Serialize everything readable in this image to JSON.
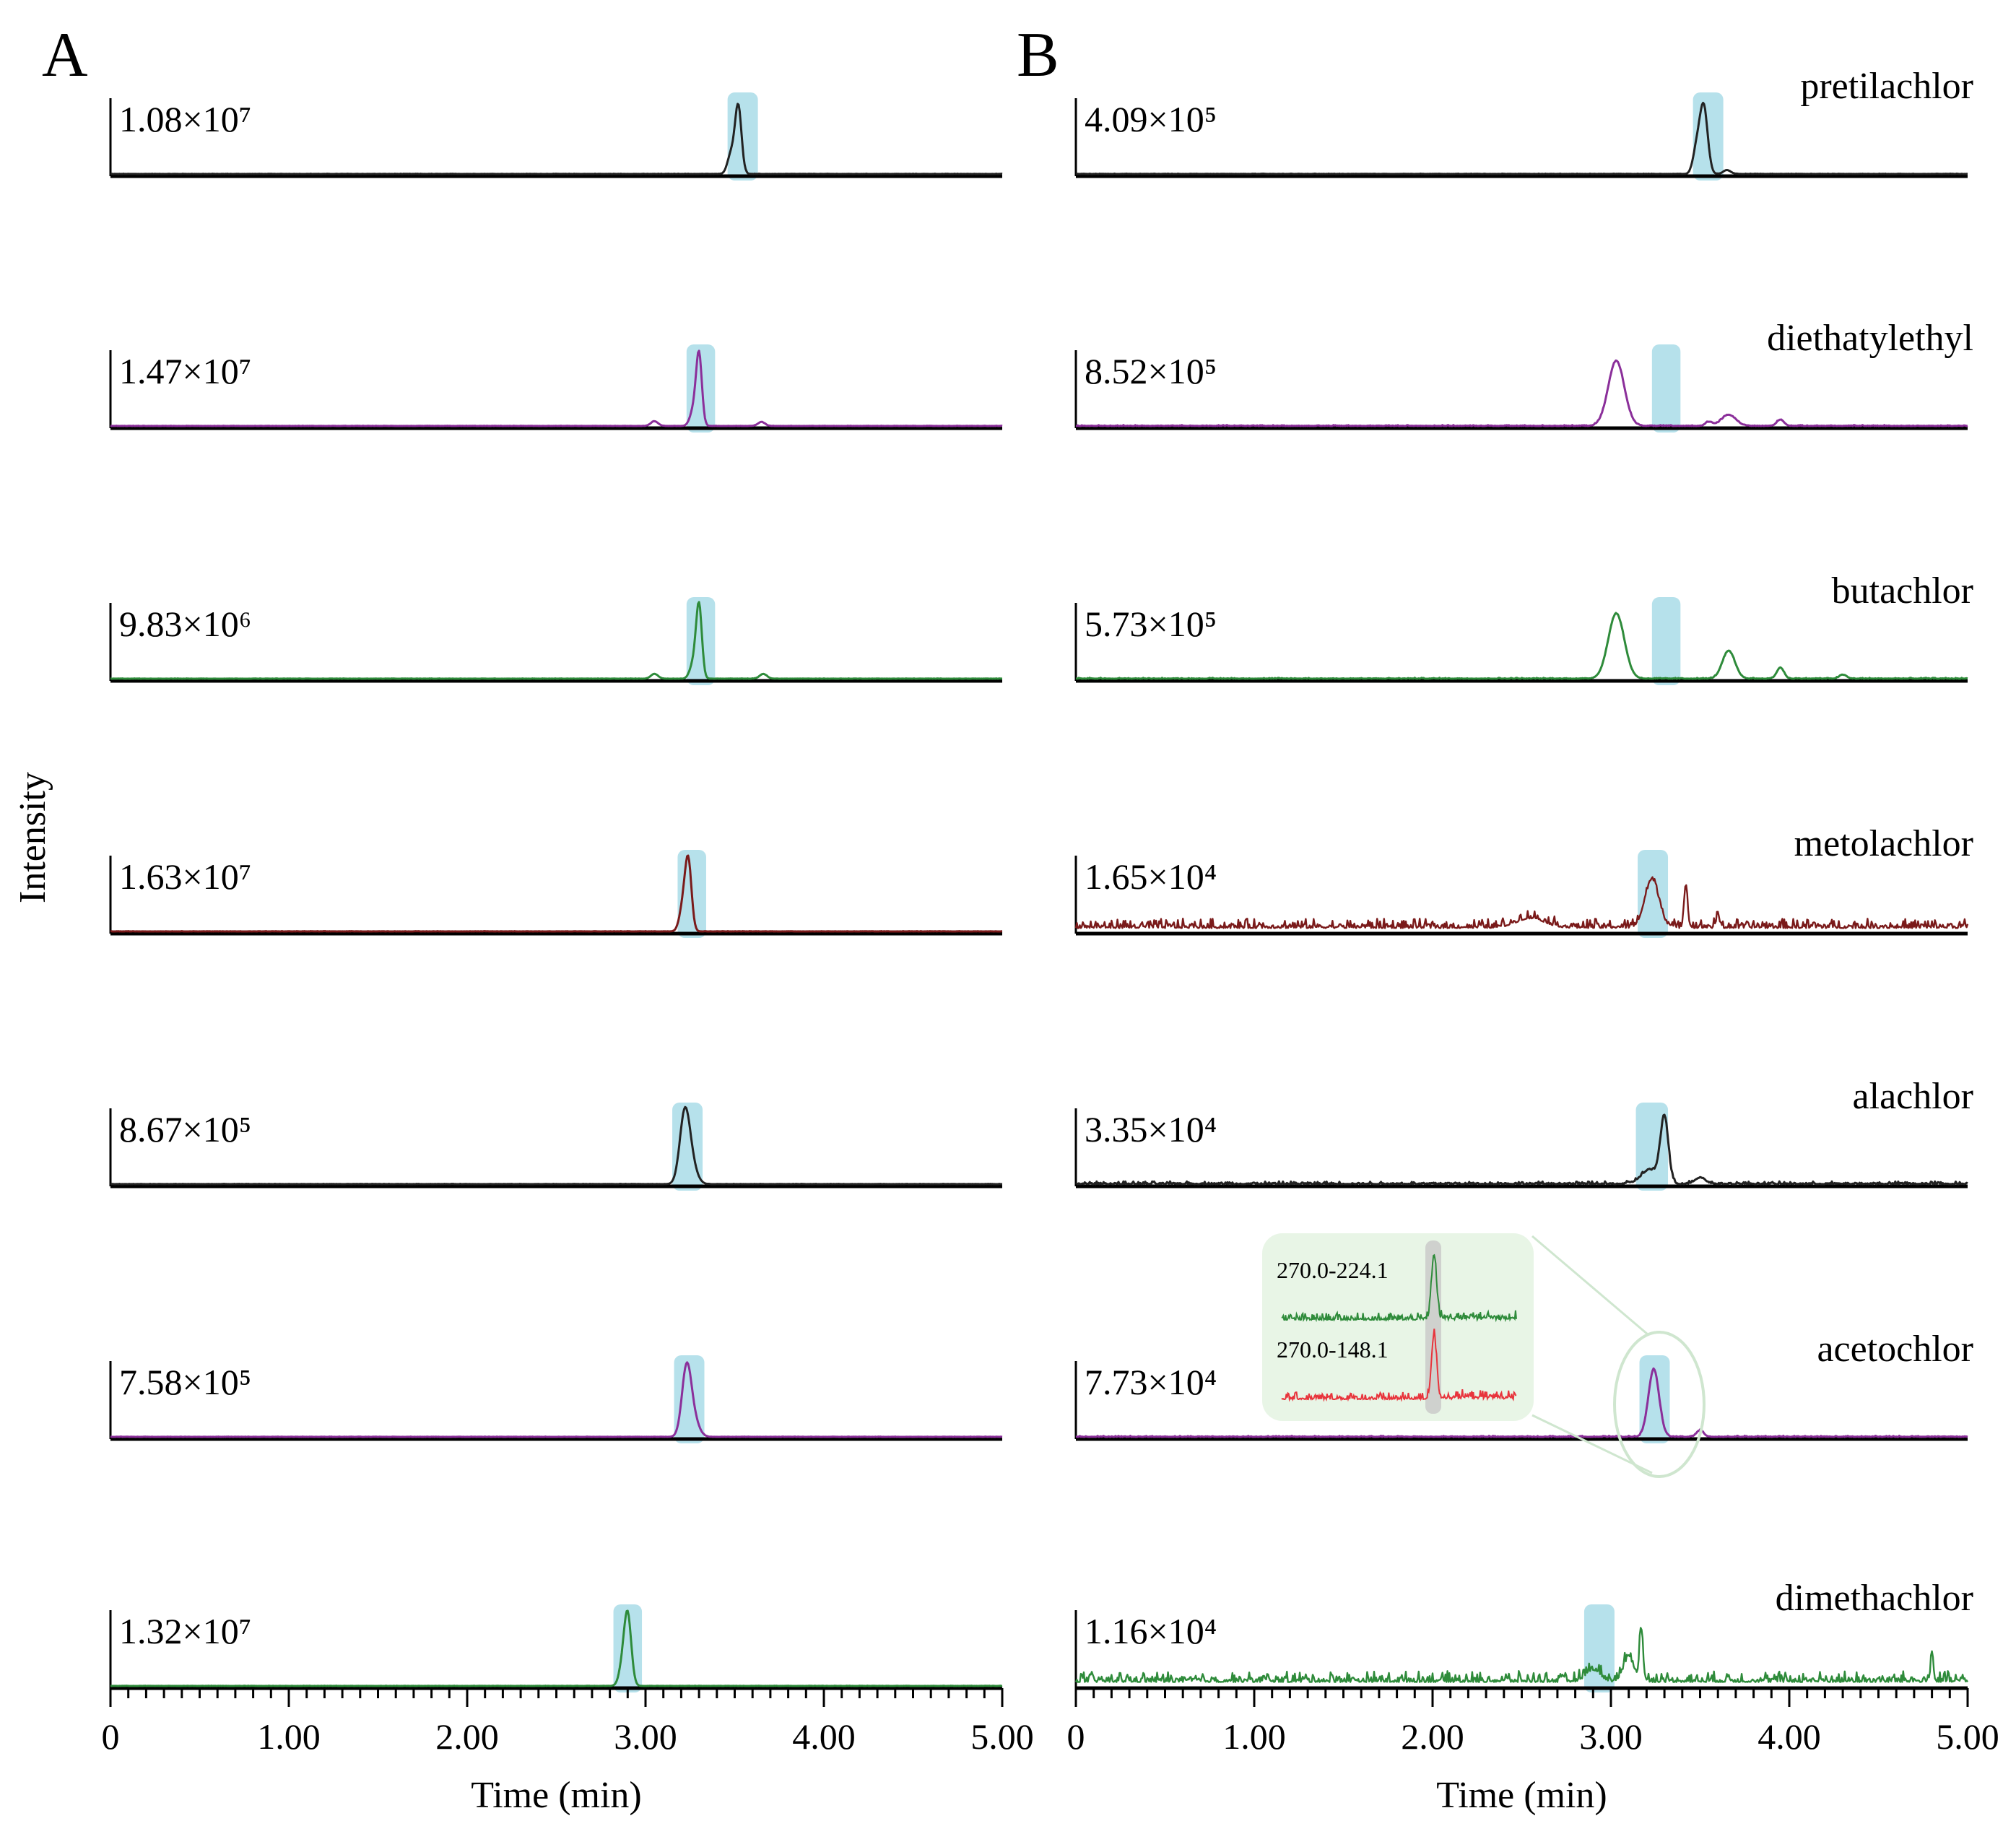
{
  "figure": {
    "panels": [
      "A",
      "B"
    ],
    "ylabel": "Intensity",
    "xlabel": "Time (min)",
    "xticks": [
      "0",
      "1.00",
      "2.00",
      "3.00",
      "4.00",
      "5.00"
    ]
  },
  "compounds": [
    "pretilachlor",
    "diethatylethyl",
    "butachlor",
    "metolachlor",
    "alachlor",
    "acetochlor",
    "dimethachlor"
  ],
  "inset": {
    "labels": [
      "270.0-224.1",
      "270.0-148.1"
    ],
    "colors": [
      "#2e8b3a",
      "#e8343c"
    ]
  },
  "highlight_color": "#a9dce8",
  "chart_data": [
    {
      "panel": "A",
      "type": "line",
      "title": "A",
      "xlabel": "Time (min)",
      "ylabel": "Intensity",
      "xlim": [
        0,
        5
      ],
      "grid": false,
      "series": [
        {
          "name": "pretilachlor",
          "scale": "1.08×10⁷",
          "color": "#222222",
          "noise": 0.004,
          "highlight": [
            3.46,
            3.63
          ],
          "peaks": [
            {
              "t": 3.52,
              "h": 0.85,
              "w": 0.018
            },
            {
              "t": 3.48,
              "h": 0.25,
              "w": 0.02
            }
          ]
        },
        {
          "name": "diethatylethyl",
          "scale": "1.47×10⁷",
          "color": "#8b2f9a",
          "noise": 0.004,
          "highlight": [
            3.23,
            3.39
          ],
          "peaks": [
            {
              "t": 3.3,
              "h": 0.88,
              "w": 0.016
            },
            {
              "t": 3.27,
              "h": 0.2,
              "w": 0.02
            },
            {
              "t": 3.05,
              "h": 0.06,
              "w": 0.02
            },
            {
              "t": 3.65,
              "h": 0.05,
              "w": 0.02
            }
          ]
        },
        {
          "name": "butachlor",
          "scale": "9.83×10⁶",
          "color": "#2e8b3a",
          "noise": 0.004,
          "highlight": [
            3.23,
            3.39
          ],
          "peaks": [
            {
              "t": 3.3,
              "h": 0.9,
              "w": 0.016
            },
            {
              "t": 3.27,
              "h": 0.2,
              "w": 0.02
            },
            {
              "t": 3.05,
              "h": 0.06,
              "w": 0.02
            },
            {
              "t": 3.66,
              "h": 0.06,
              "w": 0.02
            }
          ]
        },
        {
          "name": "metolachlor",
          "scale": "1.63×10⁷",
          "color": "#7a1a1a",
          "noise": 0.004,
          "highlight": [
            3.18,
            3.34
          ],
          "peaks": [
            {
              "t": 3.24,
              "h": 0.85,
              "w": 0.018
            },
            {
              "t": 3.21,
              "h": 0.3,
              "w": 0.02
            }
          ]
        },
        {
          "name": "alachlor",
          "scale": "8.67×10⁵",
          "color": "#222222",
          "noise": 0.004,
          "highlight": [
            3.15,
            3.32
          ],
          "peaks": [
            {
              "t": 3.22,
              "h": 0.88,
              "w": 0.028
            },
            {
              "t": 3.26,
              "h": 0.2,
              "w": 0.03
            }
          ]
        },
        {
          "name": "acetochlor",
          "scale": "7.58×10⁵",
          "color": "#8b2f9a",
          "noise": 0.004,
          "highlight": [
            3.16,
            3.33
          ],
          "peaks": [
            {
              "t": 3.23,
              "h": 0.85,
              "w": 0.026
            },
            {
              "t": 3.27,
              "h": 0.2,
              "w": 0.03
            }
          ]
        },
        {
          "name": "dimethachlor",
          "scale": "1.32×10⁷",
          "color": "#2e8b3a",
          "noise": 0.004,
          "highlight": [
            2.82,
            2.98
          ],
          "peaks": [
            {
              "t": 2.9,
              "h": 0.88,
              "w": 0.02
            },
            {
              "t": 2.87,
              "h": 0.2,
              "w": 0.02
            }
          ]
        }
      ]
    },
    {
      "panel": "B",
      "type": "line",
      "title": "B",
      "xlabel": "Time (min)",
      "ylabel": "Intensity",
      "xlim": [
        0,
        5
      ],
      "grid": false,
      "series": [
        {
          "name": "pretilachlor",
          "scale": "4.09×10⁵",
          "color": "#222222",
          "noise": 0.005,
          "highlight": [
            3.46,
            3.63
          ],
          "peaks": [
            {
              "t": 3.52,
              "h": 0.85,
              "w": 0.022
            },
            {
              "t": 3.48,
              "h": 0.3,
              "w": 0.02
            },
            {
              "t": 3.65,
              "h": 0.05,
              "w": 0.02
            }
          ]
        },
        {
          "name": "diethatylethyl",
          "scale": "8.52×10⁵",
          "color": "#8b2f9a",
          "noise": 0.012,
          "highlight": [
            3.23,
            3.39
          ],
          "peaks": [
            {
              "t": 3.03,
              "h": 0.82,
              "w": 0.045
            },
            {
              "t": 3.66,
              "h": 0.14,
              "w": 0.04
            },
            {
              "t": 3.95,
              "h": 0.08,
              "w": 0.02
            },
            {
              "t": 3.55,
              "h": 0.05,
              "w": 0.02
            }
          ]
        },
        {
          "name": "butachlor",
          "scale": "5.73×10⁵",
          "color": "#2e8b3a",
          "noise": 0.012,
          "highlight": [
            3.23,
            3.39
          ],
          "peaks": [
            {
              "t": 3.03,
              "h": 0.82,
              "w": 0.045
            },
            {
              "t": 3.66,
              "h": 0.35,
              "w": 0.035
            },
            {
              "t": 3.95,
              "h": 0.14,
              "w": 0.02
            },
            {
              "t": 4.3,
              "h": 0.05,
              "w": 0.02
            }
          ]
        },
        {
          "name": "metolachlor",
          "scale": "1.65×10⁴",
          "color": "#7a1a1a",
          "noise": 0.12,
          "highlight": [
            3.15,
            3.32
          ],
          "peaks": [
            {
              "t": 3.23,
              "h": 0.6,
              "w": 0.04
            },
            {
              "t": 3.42,
              "h": 0.55,
              "w": 0.01
            },
            {
              "t": 2.55,
              "h": 0.12,
              "w": 0.08
            },
            {
              "t": 3.6,
              "h": 0.15,
              "w": 0.01
            }
          ]
        },
        {
          "name": "alachlor",
          "scale": "3.35×10⁴",
          "color": "#222222",
          "noise": 0.035,
          "highlight": [
            3.14,
            3.32
          ],
          "peaks": [
            {
              "t": 3.3,
              "h": 0.82,
              "w": 0.022
            },
            {
              "t": 3.22,
              "h": 0.18,
              "w": 0.05
            },
            {
              "t": 3.5,
              "h": 0.08,
              "w": 0.03
            }
          ]
        },
        {
          "name": "acetochlor",
          "scale": "7.73×10⁴",
          "color": "#8b2f9a",
          "noise": 0.014,
          "highlight": [
            3.16,
            3.33
          ],
          "peaks": [
            {
              "t": 3.24,
              "h": 0.85,
              "w": 0.03
            },
            {
              "t": 3.5,
              "h": 0.08,
              "w": 0.02
            }
          ]
        },
        {
          "name": "dimethachlor",
          "scale": "1.16×10⁴",
          "color": "#2e8b3a",
          "noise": 0.14,
          "highlight": [
            2.85,
            3.02
          ],
          "peaks": [
            {
              "t": 3.17,
              "h": 0.65,
              "w": 0.01
            },
            {
              "t": 3.1,
              "h": 0.3,
              "w": 0.03
            },
            {
              "t": 2.9,
              "h": 0.15,
              "w": 0.04
            },
            {
              "t": 4.8,
              "h": 0.35,
              "w": 0.008
            }
          ]
        }
      ]
    }
  ]
}
